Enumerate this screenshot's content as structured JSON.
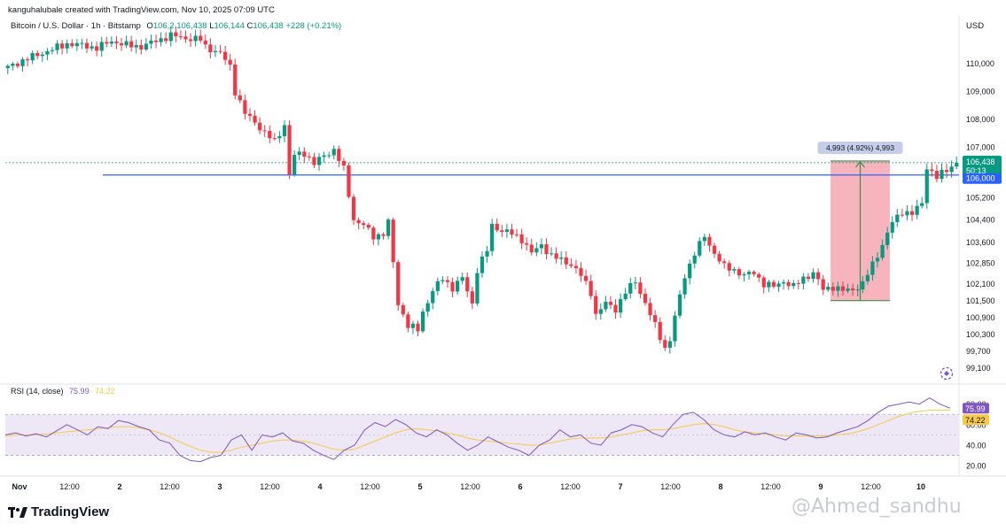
{
  "header": {
    "author_line": "kanguhalubale created with TradingView.com, Nov 10, 2025 07:09 UTC",
    "symbol": "Bitcoin / U.S. Dollar · 1h · Bitstamp",
    "open_label": "O",
    "open_value": "106,2",
    "high_value": "106,438",
    "low_label": "L",
    "low_value": "106,144",
    "close_label": "C",
    "close_value": "106,438",
    "change": "+228 (+0.21%)"
  },
  "currency_label": "USD",
  "brand": "TradingView",
  "watermark": "@Ahmed_sandhu",
  "rsi_legend": {
    "label": "RSI (14, close)",
    "value1": "75.99",
    "value2": "74.22"
  },
  "colors": {
    "up": "#089981",
    "down": "#f23645",
    "hline": "#2962ff",
    "rsi": "#7e57c2",
    "rsi_ma": "#f7c948",
    "rsi_band": "#ede7f6",
    "measure_fill": "#f7a7b1",
    "measure_line": "#3a8f4b"
  },
  "chart_data": [
    {
      "type": "candlestick",
      "title": "Bitcoin / U.S. Dollar · 1h · Bitstamp",
      "ylabel": "USD",
      "ylim": [
        98700,
        111000
      ],
      "yticks": [
        "110,000",
        "109,000",
        "108,000",
        "107,000",
        "105,200",
        "104,400",
        "103,600",
        "102,850",
        "102,100",
        "101,500",
        "100,900",
        "100,300",
        "99,700",
        "99,100"
      ],
      "ytick_values": [
        110000,
        109000,
        108000,
        107000,
        105200,
        104400,
        103600,
        102850,
        102100,
        101500,
        100900,
        100300,
        99700,
        99100
      ],
      "xticks": [
        "Nov",
        "12:00",
        "2",
        "12:00",
        "3",
        "12:00",
        "4",
        "12:00",
        "5",
        "12:00",
        "6",
        "12:00",
        "7",
        "12:00",
        "8",
        "12:00",
        "9",
        "12:00",
        "10"
      ],
      "price_path": [
        [
          0,
          109850
        ],
        [
          3,
          110100
        ],
        [
          6,
          110300
        ],
        [
          9,
          110500
        ],
        [
          12,
          110700
        ],
        [
          15,
          110650
        ],
        [
          18,
          110550
        ],
        [
          21,
          110800
        ],
        [
          24,
          110650
        ],
        [
          27,
          110600
        ],
        [
          30,
          110800
        ],
        [
          33,
          111000
        ],
        [
          36,
          110900
        ],
        [
          39,
          110850
        ],
        [
          40,
          110600
        ],
        [
          43,
          110350
        ],
        [
          45,
          109900
        ],
        [
          46,
          109000
        ],
        [
          48,
          108200
        ],
        [
          50,
          107900
        ],
        [
          52,
          107500
        ],
        [
          54,
          107200
        ],
        [
          56,
          107800
        ],
        [
          57,
          106000
        ],
        [
          58,
          106700
        ],
        [
          60,
          106800
        ],
        [
          62,
          106400
        ],
        [
          64,
          106700
        ],
        [
          66,
          106900
        ],
        [
          68,
          106200
        ],
        [
          70,
          104400
        ],
        [
          72,
          104200
        ],
        [
          74,
          103800
        ],
        [
          76,
          103900
        ],
        [
          77,
          104300
        ],
        [
          79,
          101400
        ],
        [
          81,
          100600
        ],
        [
          83,
          100450
        ],
        [
          84,
          101100
        ],
        [
          86,
          101850
        ],
        [
          88,
          102300
        ],
        [
          90,
          101950
        ],
        [
          92,
          102300
        ],
        [
          94,
          101400
        ],
        [
          95,
          102600
        ],
        [
          97,
          103300
        ],
        [
          98,
          104200
        ],
        [
          100,
          104000
        ],
        [
          102,
          103900
        ],
        [
          104,
          103700
        ],
        [
          106,
          103200
        ],
        [
          108,
          103500
        ],
        [
          110,
          103100
        ],
        [
          112,
          102950
        ],
        [
          114,
          102800
        ],
        [
          115,
          102600
        ],
        [
          116,
          102400
        ],
        [
          118,
          101800
        ],
        [
          119,
          101000
        ],
        [
          121,
          101400
        ],
        [
          123,
          101200
        ],
        [
          125,
          101800
        ],
        [
          127,
          102200
        ],
        [
          129,
          101400
        ],
        [
          131,
          100600
        ],
        [
          133,
          99800
        ],
        [
          134,
          100100
        ],
        [
          135,
          100900
        ],
        [
          137,
          102400
        ],
        [
          139,
          103200
        ],
        [
          141,
          103800
        ],
        [
          143,
          103200
        ],
        [
          145,
          102700
        ],
        [
          147,
          102600
        ],
        [
          149,
          102400
        ],
        [
          151,
          102500
        ],
        [
          153,
          102100
        ],
        [
          155,
          102000
        ],
        [
          157,
          102200
        ],
        [
          159,
          102000
        ],
        [
          161,
          102300
        ],
        [
          163,
          102500
        ],
        [
          165,
          101900
        ],
        [
          167,
          102000
        ],
        [
          169,
          101850
        ],
        [
          171,
          101900
        ],
        [
          173,
          102100
        ],
        [
          175,
          102800
        ],
        [
          177,
          103500
        ],
        [
          179,
          104300
        ],
        [
          181,
          104700
        ],
        [
          183,
          104600
        ],
        [
          185,
          105000
        ],
        [
          186,
          106300
        ],
        [
          188,
          105900
        ],
        [
          190,
          106200
        ],
        [
          192,
          106438
        ]
      ],
      "horizontal_line": 106000,
      "last_price_label": "106,438",
      "countdown_label": "50:13",
      "hline_label": "106,000",
      "measure": {
        "from_price": 101500,
        "to_price": 106500,
        "from_bar": 167,
        "to_bar": 178,
        "label": "4,993 (4.92%) 4,993"
      }
    },
    {
      "type": "line",
      "title": "RSI (14, close)",
      "ylim": [
        15,
        90
      ],
      "yticks": [
        "80.00",
        "60.00",
        "40.00",
        "20.00"
      ],
      "ytick_values": [
        80,
        60,
        40,
        20
      ],
      "band": [
        30,
        70
      ],
      "series": [
        {
          "name": "RSI",
          "values": [
            50,
            52,
            49,
            51,
            48,
            54,
            60,
            55,
            50,
            58,
            56,
            64,
            62,
            58,
            55,
            45,
            42,
            30,
            25,
            24,
            28,
            30,
            45,
            50,
            35,
            50,
            48,
            52,
            44,
            42,
            35,
            30,
            26,
            35,
            40,
            55,
            62,
            58,
            65,
            60,
            52,
            48,
            55,
            50,
            42,
            35,
            40,
            48,
            43,
            38,
            35,
            30,
            40,
            45,
            55,
            48,
            50,
            42,
            40,
            52,
            55,
            60,
            58,
            52,
            48,
            60,
            70,
            72,
            65,
            55,
            50,
            48,
            53,
            50,
            52,
            48,
            45,
            52,
            50,
            47,
            48,
            52,
            55,
            58,
            64,
            72,
            78,
            80,
            82,
            80,
            86,
            80,
            76
          ]
        },
        {
          "name": "RSI-based MA",
          "values": [
            49,
            50,
            50,
            50,
            51,
            52,
            53,
            54,
            55,
            56,
            57,
            58,
            58,
            57,
            55,
            52,
            48,
            43,
            39,
            35,
            33,
            33,
            35,
            38,
            40,
            42,
            44,
            45,
            45,
            44,
            42,
            39,
            36,
            35,
            36,
            40,
            44,
            48,
            52,
            55,
            56,
            55,
            54,
            52,
            50,
            47,
            45,
            44,
            43,
            42,
            41,
            40,
            40,
            42,
            44,
            46,
            47,
            47,
            47,
            48,
            50,
            52,
            54,
            55,
            55,
            56,
            58,
            60,
            61,
            60,
            58,
            55,
            53,
            52,
            51,
            50,
            49,
            49,
            49,
            49,
            49,
            50,
            51,
            53,
            56,
            60,
            64,
            68,
            71,
            73,
            74,
            74,
            74
          ]
        }
      ],
      "last_values": [
        "75.99",
        "74.22"
      ]
    }
  ]
}
